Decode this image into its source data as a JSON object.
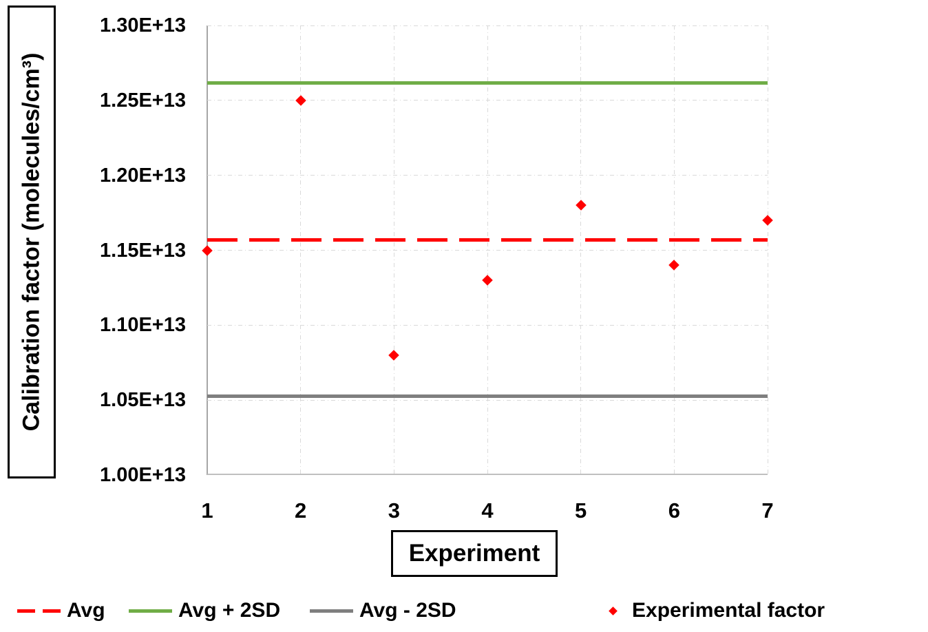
{
  "chart_data": {
    "type": "scatter",
    "title": "",
    "xlabel": "Experiment",
    "ylabel": "Calibration factor (molecules/cm³)",
    "xlim": [
      1,
      7
    ],
    "ylim": [
      10000000000000.0,
      13000000000000.0
    ],
    "grid": true,
    "legend_position": "bottom",
    "x_ticks": [
      {
        "label": "1",
        "value": 1
      },
      {
        "label": "2",
        "value": 2
      },
      {
        "label": "3",
        "value": 3
      },
      {
        "label": "4",
        "value": 4
      },
      {
        "label": "5",
        "value": 5
      },
      {
        "label": "6",
        "value": 6
      },
      {
        "label": "7",
        "value": 7
      }
    ],
    "y_ticks": [
      {
        "label": "1.30E+13",
        "value": 13000000000000.0
      },
      {
        "label": "1.25E+13",
        "value": 12500000000000.0
      },
      {
        "label": "1.20E+13",
        "value": 12000000000000.0
      },
      {
        "label": "1.15E+13",
        "value": 11500000000000.0
      },
      {
        "label": "1.10E+13",
        "value": 11000000000000.0
      },
      {
        "label": "1.05E+13",
        "value": 10500000000000.0
      },
      {
        "label": "1.00E+13",
        "value": 10000000000000.0
      }
    ],
    "points": {
      "name": "Experimental factor",
      "marker": "diamond",
      "color": "#FF0000",
      "x": [
        1,
        2,
        3,
        4,
        5,
        6,
        7
      ],
      "y": [
        11500000000000.0,
        12500000000000.0,
        10800000000000.0,
        11300000000000.0,
        11800000000000.0,
        11400000000000.0,
        11700000000000.0
      ]
    },
    "lines": [
      {
        "id": "avg-line",
        "name": "Avg",
        "value": 11570000000000.0,
        "style": "dashed",
        "color": "#FF0000"
      },
      {
        "id": "avg-plus-2sd-line",
        "name": "Avg + 2SD",
        "value": 12615000000000.0,
        "style": "solid",
        "color": "#70AD47"
      },
      {
        "id": "avg-minus-2sd-line",
        "name": "Avg - 2SD",
        "value": 10527000000000.0,
        "style": "solid",
        "color": "#7F7F7F"
      }
    ]
  },
  "legend": {
    "items": [
      {
        "label": "Avg",
        "swatch": "dashed-line",
        "color": "#FF0000"
      },
      {
        "label": "Avg + 2SD",
        "swatch": "solid-line",
        "color": "#70AD47"
      },
      {
        "label": "Avg - 2SD",
        "swatch": "solid-line",
        "color": "#7F7F7F"
      },
      {
        "label": "Experimental factor",
        "swatch": "diamond",
        "color": "#FF0000"
      }
    ]
  }
}
